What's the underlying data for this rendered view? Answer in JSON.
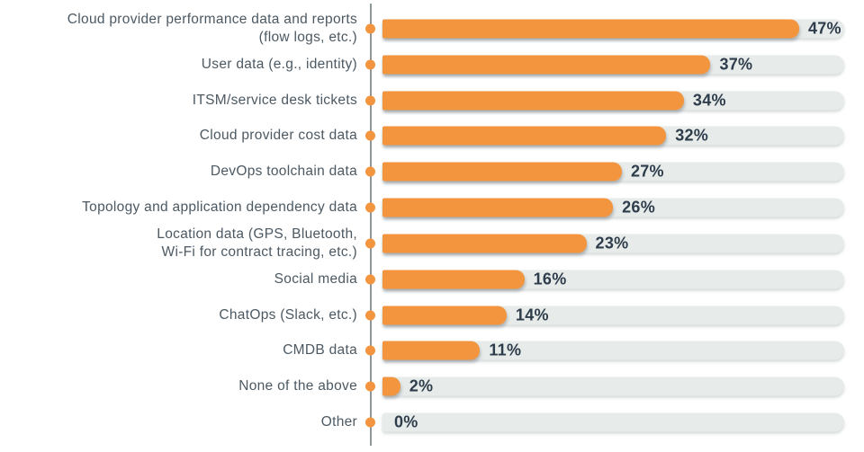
{
  "chart_data": {
    "type": "bar",
    "orientation": "horizontal",
    "title": "",
    "xlabel": "",
    "ylabel": "",
    "xlim": [
      0,
      52
    ],
    "grid": false,
    "legend": false,
    "categories": [
      "Cloud provider performance data and reports\n(flow logs, etc.)",
      "User data (e.g., identity)",
      "ITSM/service desk tickets",
      "Cloud provider cost data",
      "DevOps toolchain data",
      "Topology and application dependency data",
      "Location data (GPS, Bluetooth,\nWi-Fi for contract tracing, etc.)",
      "Social media",
      "ChatOps (Slack, etc.)",
      "CMDB data",
      "None of the above",
      "Other"
    ],
    "values": [
      47,
      37,
      34,
      32,
      27,
      26,
      23,
      16,
      14,
      11,
      2,
      0
    ],
    "value_labels": [
      "47%",
      "37%",
      "34%",
      "32%",
      "27%",
      "26%",
      "23%",
      "16%",
      "14%",
      "11%",
      "2%",
      "0%"
    ],
    "colors": {
      "bar": "#F2953E",
      "track": "#E7EBE9",
      "value_text": "#2E3D4C",
      "category_text": "#4C5963",
      "axis_line": "#8E9798",
      "background": "#FFFFFF"
    }
  }
}
